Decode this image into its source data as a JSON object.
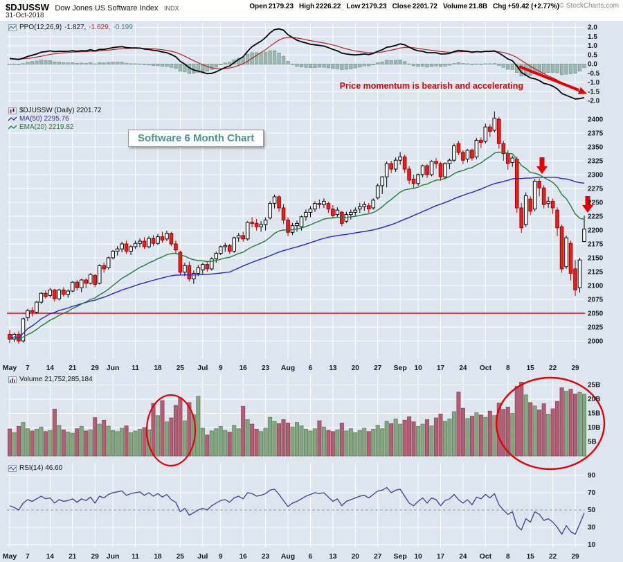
{
  "header": {
    "symbol": "$DJUSSW",
    "name": "Dow Jones US Software Index",
    "exchange": "INDX",
    "date": "31-Oct-2018",
    "fields": [
      {
        "label": "Open",
        "value": "2179.23"
      },
      {
        "label": "High",
        "value": "2226.22"
      },
      {
        "label": "Low",
        "value": "2179.23"
      },
      {
        "label": "Close",
        "value": "2201.72"
      },
      {
        "label": "Volume",
        "value": "21.8B"
      },
      {
        "label": "Chg",
        "value": "+59.42 (+2.77%)"
      }
    ],
    "copyright": "© StockCharts.com"
  },
  "colors": {
    "background": "#dde5ef",
    "grid": "#ffffff",
    "candle_down_fill": "#e8211a",
    "candle_down_stroke": "#a00000",
    "ma50": "#2626bf",
    "ema20": "#1f7d33",
    "ppo_line": "#000000",
    "ppo_signal": "#b32424",
    "hist_fill": "#9cb8b0",
    "hist_stroke": "#77998f",
    "vol_up": "#84a77f",
    "vol_up_stroke": "#5d7f5a",
    "vol_down": "#b25f74",
    "vol_down_stroke": "#8a4258",
    "rsi_line": "#3c3c96",
    "annotation_red": "#e60000",
    "title_teal": "#4a9494",
    "ppo_value_colors": [
      "#111111",
      "#c22222",
      "#2a8a6e"
    ]
  },
  "ppo_panel": {
    "legend": "PPO(12,26,9)",
    "values": [
      "-1.827,",
      "-1.629,",
      "-0.199"
    ],
    "annotation": "Price momentum is bearish and accelerating",
    "axis": [
      "2.0",
      "1.5",
      "1.0",
      "0.5",
      "0.0",
      "-0.5",
      "-1.0",
      "-1.5",
      "-2.0"
    ]
  },
  "price_panel": {
    "legend_symbol": "$DJUSSW (Daily) 2201.72",
    "legend_ma50": "MA(50) 2295.76",
    "legend_ema20": "EMA(20) 2219.82",
    "title_box": "Software 6 Month Chart",
    "axis": [
      "2400",
      "2375",
      "2350",
      "2325",
      "2300",
      "2275",
      "2250",
      "2225",
      "2200",
      "2175",
      "2150",
      "2125",
      "2100",
      "2075",
      "2050",
      "2025",
      "2000"
    ]
  },
  "volume_panel": {
    "legend": "Volume 21,752,285,184",
    "axis": [
      "25B",
      "20B",
      "15B",
      "10B",
      "5B"
    ]
  },
  "rsi_panel": {
    "legend": "RSI(14) 46.60",
    "axis": [
      "90",
      "70",
      "50",
      "30",
      "10"
    ]
  },
  "chart_data": {
    "type": "candlestick",
    "title": "Software 6 Month Chart",
    "n": 129,
    "price_axis_range": [
      2000,
      2400
    ],
    "ppo_axis_range": [
      -2,
      2
    ],
    "volume_axis_range_billions": [
      0,
      26
    ],
    "rsi_axis_range": [
      10,
      90
    ],
    "support_line": 2050,
    "ma50_last": 2295.76,
    "ema20_last": 2219.82,
    "rsi_mid": 50,
    "ticks": [
      [
        0,
        "May"
      ],
      [
        4,
        "7"
      ],
      [
        9,
        "14"
      ],
      [
        14,
        "21"
      ],
      [
        19,
        "29"
      ],
      [
        23,
        "Jun"
      ],
      [
        28,
        "11"
      ],
      [
        33,
        "18"
      ],
      [
        38,
        "25"
      ],
      [
        43,
        "Jul"
      ],
      [
        47,
        "9"
      ],
      [
        52,
        "16"
      ],
      [
        57,
        "23"
      ],
      [
        62,
        "Aug"
      ],
      [
        67,
        "6"
      ],
      [
        72,
        "13"
      ],
      [
        77,
        "20"
      ],
      [
        82,
        "27"
      ],
      [
        87,
        "Sep"
      ],
      [
        91,
        "10"
      ],
      [
        96,
        "17"
      ],
      [
        101,
        "24"
      ],
      [
        106,
        "Oct"
      ],
      [
        111,
        "8"
      ],
      [
        116,
        "15"
      ],
      [
        121,
        "22"
      ],
      [
        126,
        "29"
      ]
    ],
    "ohlc": [
      [
        2012,
        2020,
        1996,
        2003
      ],
      [
        2003,
        2015,
        1998,
        2012
      ],
      [
        2012,
        2018,
        1995,
        2000
      ],
      [
        2000,
        2042,
        1997,
        2040
      ],
      [
        2042,
        2058,
        2036,
        2055
      ],
      [
        2055,
        2061,
        2044,
        2052
      ],
      [
        2052,
        2072,
        2049,
        2070
      ],
      [
        2070,
        2088,
        2067,
        2086
      ],
      [
        2086,
        2091,
        2076,
        2080
      ],
      [
        2082,
        2096,
        2078,
        2092
      ],
      [
        2092,
        2094,
        2071,
        2076
      ],
      [
        2076,
        2094,
        2073,
        2092
      ],
      [
        2092,
        2097,
        2080,
        2084
      ],
      [
        2084,
        2093,
        2078,
        2090
      ],
      [
        2090,
        2108,
        2088,
        2106
      ],
      [
        2106,
        2110,
        2091,
        2096
      ],
      [
        2096,
        2112,
        2088,
        2110
      ],
      [
        2110,
        2113,
        2095,
        2104
      ],
      [
        2104,
        2122,
        2102,
        2120
      ],
      [
        2118,
        2121,
        2097,
        2102
      ],
      [
        2104,
        2138,
        2102,
        2136
      ],
      [
        2136,
        2141,
        2123,
        2130
      ],
      [
        2132,
        2152,
        2129,
        2150
      ],
      [
        2150,
        2164,
        2147,
        2162
      ],
      [
        2162,
        2171,
        2154,
        2166
      ],
      [
        2166,
        2179,
        2160,
        2175
      ],
      [
        2175,
        2181,
        2157,
        2162
      ],
      [
        2162,
        2173,
        2155,
        2170
      ],
      [
        2170,
        2181,
        2166,
        2176
      ],
      [
        2176,
        2185,
        2169,
        2180
      ],
      [
        2180,
        2187,
        2166,
        2170
      ],
      [
        2170,
        2189,
        2167,
        2185
      ],
      [
        2185,
        2191,
        2171,
        2176
      ],
      [
        2176,
        2193,
        2173,
        2188
      ],
      [
        2188,
        2197,
        2177,
        2182
      ],
      [
        2184,
        2199,
        2180,
        2194
      ],
      [
        2194,
        2197,
        2171,
        2175
      ],
      [
        2175,
        2181,
        2159,
        2164
      ],
      [
        2160,
        2163,
        2119,
        2124
      ],
      [
        2124,
        2141,
        2117,
        2136
      ],
      [
        2136,
        2143,
        2107,
        2112
      ],
      [
        2112,
        2127,
        2103,
        2122
      ],
      [
        2122,
        2137,
        2117,
        2132
      ],
      [
        2128,
        2141,
        2119,
        2138
      ],
      [
        2138,
        2143,
        2125,
        2130
      ],
      [
        2130,
        2151,
        2127,
        2148
      ],
      [
        2148,
        2161,
        2141,
        2158
      ],
      [
        2158,
        2172,
        2155,
        2170
      ],
      [
        2170,
        2177,
        2161,
        2172
      ],
      [
        2172,
        2175,
        2157,
        2162
      ],
      [
        2162,
        2188,
        2159,
        2186
      ],
      [
        2186,
        2195,
        2179,
        2190
      ],
      [
        2190,
        2197,
        2179,
        2184
      ],
      [
        2184,
        2216,
        2181,
        2214
      ],
      [
        2214,
        2223,
        2205,
        2212
      ],
      [
        2212,
        2220,
        2199,
        2206
      ],
      [
        2206,
        2216,
        2197,
        2210
      ],
      [
        2210,
        2223,
        2199,
        2218
      ],
      [
        2222,
        2252,
        2219,
        2248
      ],
      [
        2248,
        2264,
        2239,
        2260
      ],
      [
        2260,
        2263,
        2233,
        2240
      ],
      [
        2240,
        2247,
        2211,
        2218
      ],
      [
        2218,
        2223,
        2189,
        2196
      ],
      [
        2196,
        2213,
        2191,
        2208
      ],
      [
        2208,
        2217,
        2197,
        2212
      ],
      [
        2206,
        2226,
        2199,
        2224
      ],
      [
        2224,
        2237,
        2217,
        2232
      ],
      [
        2232,
        2243,
        2223,
        2238
      ],
      [
        2238,
        2252,
        2233,
        2248
      ],
      [
        2248,
        2255,
        2239,
        2246
      ],
      [
        2246,
        2257,
        2240,
        2252
      ],
      [
        2248,
        2251,
        2231,
        2238
      ],
      [
        2238,
        2245,
        2221,
        2226
      ],
      [
        2228,
        2241,
        2223,
        2236
      ],
      [
        2232,
        2235,
        2207,
        2212
      ],
      [
        2216,
        2233,
        2213,
        2228
      ],
      [
        2228,
        2237,
        2219,
        2232
      ],
      [
        2232,
        2241,
        2225,
        2236
      ],
      [
        2238,
        2249,
        2231,
        2242
      ],
      [
        2242,
        2251,
        2235,
        2246
      ],
      [
        2244,
        2249,
        2231,
        2238
      ],
      [
        2240,
        2257,
        2237,
        2254
      ],
      [
        2258,
        2284,
        2255,
        2280
      ],
      [
        2280,
        2297,
        2265,
        2296
      ],
      [
        2296,
        2324,
        2277,
        2320
      ],
      [
        2320,
        2325,
        2303,
        2310
      ],
      [
        2310,
        2331,
        2305,
        2326
      ],
      [
        2326,
        2341,
        2318,
        2332
      ],
      [
        2332,
        2336,
        2303,
        2310
      ],
      [
        2310,
        2315,
        2283,
        2290
      ],
      [
        2292,
        2300,
        2275,
        2284
      ],
      [
        2284,
        2302,
        2280,
        2300
      ],
      [
        2300,
        2318,
        2295,
        2316
      ],
      [
        2316,
        2319,
        2294,
        2300
      ],
      [
        2300,
        2326,
        2297,
        2324
      ],
      [
        2324,
        2330,
        2311,
        2320
      ],
      [
        2320,
        2323,
        2289,
        2296
      ],
      [
        2296,
        2322,
        2292,
        2320
      ],
      [
        2320,
        2329,
        2310,
        2326
      ],
      [
        2326,
        2356,
        2323,
        2352
      ],
      [
        2356,
        2361,
        2335,
        2340
      ],
      [
        2340,
        2344,
        2319,
        2326
      ],
      [
        2328,
        2346,
        2322,
        2344
      ],
      [
        2344,
        2347,
        2325,
        2330
      ],
      [
        2332,
        2366,
        2328,
        2362
      ],
      [
        2362,
        2367,
        2348,
        2358
      ],
      [
        2360,
        2392,
        2356,
        2386
      ],
      [
        2386,
        2391,
        2368,
        2378
      ],
      [
        2380,
        2414,
        2376,
        2402
      ],
      [
        2400,
        2404,
        2347,
        2356
      ],
      [
        2356,
        2361,
        2325,
        2338
      ],
      [
        2338,
        2344,
        2309,
        2320
      ],
      [
        2322,
        2334,
        2314,
        2330
      ],
      [
        2328,
        2332,
        2231,
        2240
      ],
      [
        2240,
        2249,
        2195,
        2204
      ],
      [
        2210,
        2268,
        2206,
        2262
      ],
      [
        2256,
        2261,
        2227,
        2234
      ],
      [
        2238,
        2292,
        2234,
        2288
      ],
      [
        2288,
        2293,
        2261,
        2276
      ],
      [
        2276,
        2281,
        2239,
        2246
      ],
      [
        2248,
        2260,
        2240,
        2252
      ],
      [
        2252,
        2257,
        2229,
        2240
      ],
      [
        2236,
        2241,
        2189,
        2204
      ],
      [
        2206,
        2210,
        2123,
        2130
      ],
      [
        2134,
        2190,
        2130,
        2186
      ],
      [
        2176,
        2181,
        2109,
        2122
      ],
      [
        2130,
        2146,
        2081,
        2092
      ],
      [
        2096,
        2150,
        2087,
        2146
      ],
      [
        2179.23,
        2226.22,
        2179.23,
        2201.72
      ]
    ],
    "volume_billions": [
      9.5,
      8.2,
      10.4,
      11.8,
      9.6,
      8.8,
      9.4,
      10.2,
      8.6,
      9.0,
      16.5,
      10.8,
      9.2,
      8.4,
      8.0,
      9.6,
      10.4,
      8.8,
      9.2,
      13.5,
      11.2,
      12.6,
      10.5,
      9.0,
      8.6,
      9.8,
      10.6,
      8.2,
      8.8,
      9.4,
      10.0,
      9.2,
      18.5,
      14.2,
      19.5,
      12.0,
      13.4,
      17.8,
      20.5,
      12.4,
      18.8,
      14.6,
      21.0,
      9.8,
      7.4,
      8.8,
      9.6,
      10.4,
      9.0,
      8.4,
      10.8,
      9.6,
      17.5,
      12.8,
      11.2,
      9.4,
      8.6,
      9.8,
      13.6,
      12.2,
      11.4,
      12.8,
      11.6,
      10.2,
      11.8,
      10.6,
      9.4,
      8.8,
      9.6,
      12.4,
      10.2,
      9.0,
      8.6,
      9.2,
      11.6,
      8.8,
      9.6,
      8.2,
      9.0,
      9.8,
      8.6,
      9.4,
      10.8,
      9.6,
      12.2,
      11.4,
      13.0,
      11.2,
      12.6,
      13.8,
      12.0,
      10.4,
      11.2,
      12.8,
      10.6,
      13.4,
      14.8,
      12.2,
      13.0,
      15.6,
      22.5,
      16.8,
      13.2,
      14.0,
      15.2,
      14.4,
      13.6,
      15.8,
      14.2,
      18.6,
      16.4,
      17.2,
      15.0,
      24.5,
      26.0,
      21.5,
      18.8,
      17.6,
      16.2,
      18.4,
      14.8,
      16.6,
      19.2,
      24.0,
      22.8,
      23.5,
      21.8,
      22.4,
      21.75
    ],
    "ppo": [
      0.3,
      0.28,
      0.25,
      0.32,
      0.42,
      0.48,
      0.55,
      0.65,
      0.68,
      0.72,
      0.68,
      0.7,
      0.69,
      0.7,
      0.73,
      0.7,
      0.73,
      0.72,
      0.78,
      0.72,
      0.8,
      0.8,
      0.85,
      0.9,
      0.93,
      0.95,
      0.9,
      0.88,
      0.88,
      0.87,
      0.82,
      0.8,
      0.75,
      0.72,
      0.66,
      0.62,
      0.52,
      0.4,
      0.15,
      0.0,
      -0.2,
      -0.32,
      -0.38,
      -0.45,
      -0.52,
      -0.5,
      -0.42,
      -0.3,
      -0.18,
      -0.1,
      0.08,
      0.25,
      0.4,
      0.7,
      0.95,
      1.1,
      1.25,
      1.45,
      1.7,
      1.88,
      1.92,
      1.85,
      1.6,
      1.45,
      1.3,
      1.22,
      1.15,
      1.08,
      1.05,
      1.02,
      0.98,
      0.9,
      0.8,
      0.72,
      0.6,
      0.55,
      0.52,
      0.5,
      0.52,
      0.55,
      0.52,
      0.58,
      0.7,
      0.78,
      0.92,
      0.95,
      1.02,
      1.1,
      1.05,
      0.92,
      0.8,
      0.72,
      0.7,
      0.62,
      0.62,
      0.62,
      0.55,
      0.55,
      0.58,
      0.68,
      0.75,
      0.72,
      0.7,
      0.64,
      0.68,
      0.66,
      0.7,
      0.7,
      0.72,
      0.6,
      0.45,
      0.28,
      0.18,
      -0.1,
      -0.45,
      -0.6,
      -0.75,
      -0.8,
      -0.9,
      -1.05,
      -1.1,
      -1.2,
      -1.35,
      -1.6,
      -1.7,
      -1.8,
      -1.9,
      -1.88,
      -1.827
    ],
    "ppo_signal": [
      0.3,
      0.29,
      0.28,
      0.29,
      0.31,
      0.34,
      0.38,
      0.43,
      0.48,
      0.53,
      0.56,
      0.59,
      0.61,
      0.63,
      0.65,
      0.66,
      0.67,
      0.68,
      0.7,
      0.7,
      0.72,
      0.74,
      0.76,
      0.79,
      0.82,
      0.84,
      0.85,
      0.86,
      0.86,
      0.86,
      0.85,
      0.84,
      0.83,
      0.81,
      0.78,
      0.75,
      0.7,
      0.64,
      0.54,
      0.43,
      0.31,
      0.18,
      0.07,
      -0.03,
      -0.13,
      -0.2,
      -0.25,
      -0.26,
      -0.24,
      -0.21,
      -0.15,
      -0.07,
      0.02,
      0.16,
      0.32,
      0.47,
      0.63,
      0.79,
      0.97,
      1.15,
      1.31,
      1.42,
      1.45,
      1.45,
      1.42,
      1.38,
      1.33,
      1.28,
      1.24,
      1.19,
      1.15,
      1.1,
      1.04,
      0.98,
      0.9,
      0.83,
      0.77,
      0.71,
      0.68,
      0.65,
      0.62,
      0.62,
      0.63,
      0.66,
      0.71,
      0.76,
      0.81,
      0.87,
      0.91,
      0.91,
      0.89,
      0.85,
      0.82,
      0.78,
      0.75,
      0.72,
      0.69,
      0.66,
      0.64,
      0.65,
      0.67,
      0.68,
      0.68,
      0.67,
      0.67,
      0.67,
      0.68,
      0.68,
      0.69,
      0.67,
      0.63,
      0.56,
      0.48,
      0.36,
      0.2,
      0.04,
      -0.12,
      -0.26,
      -0.39,
      -0.52,
      -0.64,
      -0.75,
      -0.87,
      -1.02,
      -1.15,
      -1.28,
      -1.4,
      -1.5,
      -1.629
    ],
    "rsi": [
      55,
      53,
      50,
      58,
      62,
      60,
      63,
      66,
      63,
      64,
      58,
      62,
      60,
      61,
      63,
      59,
      63,
      61,
      65,
      58,
      66,
      64,
      68,
      70,
      71,
      72,
      67,
      69,
      70,
      71,
      67,
      70,
      66,
      69,
      65,
      68,
      62,
      59,
      48,
      52,
      44,
      47,
      50,
      52,
      50,
      55,
      58,
      61,
      62,
      59,
      64,
      66,
      63,
      70,
      69,
      66,
      67,
      69,
      73,
      74,
      68,
      61,
      54,
      58,
      60,
      63,
      66,
      68,
      70,
      69,
      70,
      65,
      60,
      63,
      55,
      60,
      62,
      64,
      66,
      67,
      64,
      68,
      72,
      73,
      76,
      70,
      73,
      74,
      66,
      58,
      55,
      60,
      64,
      58,
      64,
      62,
      55,
      61,
      63,
      68,
      62,
      58,
      62,
      56,
      65,
      63,
      68,
      64,
      69,
      56,
      50,
      45,
      48,
      32,
      27,
      40,
      36,
      48,
      45,
      38,
      40,
      36,
      30,
      22,
      32,
      25,
      22,
      34,
      46.6
    ]
  }
}
